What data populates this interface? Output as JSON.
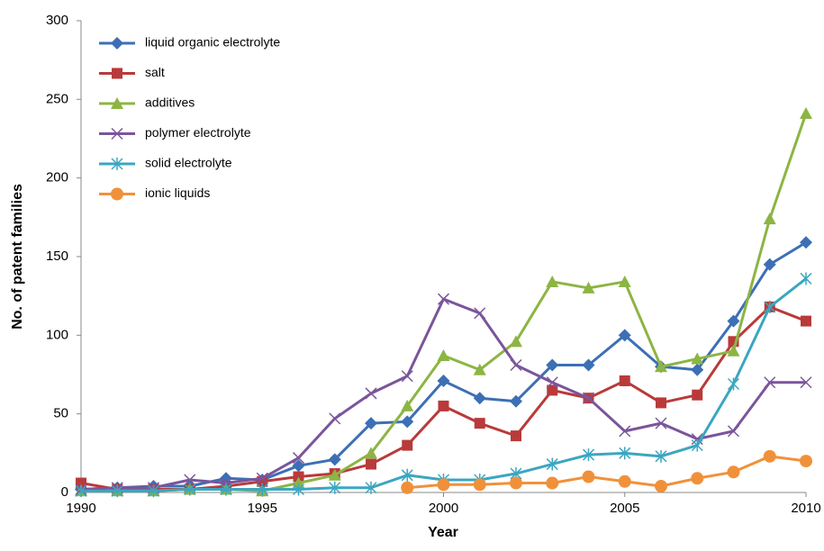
{
  "chart_data": {
    "type": "line",
    "x": [
      1990,
      1991,
      1992,
      1993,
      1994,
      1995,
      1996,
      1997,
      1998,
      1999,
      2000,
      2001,
      2002,
      2003,
      2004,
      2005,
      2006,
      2007,
      2008,
      2009,
      2010
    ],
    "xlabel": "Year",
    "ylabel": "No. of patent families",
    "xlim": [
      1990,
      2010
    ],
    "xticks": [
      1990,
      1995,
      2000,
      2005,
      2010
    ],
    "ylim": [
      0,
      300
    ],
    "yticks": [
      0,
      50,
      100,
      150,
      200,
      250,
      300
    ],
    "legend": "upper left",
    "series": [
      {
        "name": "liquid organic electrolyte",
        "color": "#3d6fb5",
        "values": [
          2,
          3,
          4,
          4,
          9,
          8,
          17,
          21,
          44,
          45,
          71,
          60,
          58,
          81,
          81,
          100,
          80,
          78,
          109,
          145,
          159
        ]
      },
      {
        "name": "salt",
        "color": "#b93a3a",
        "values": [
          6,
          2,
          2,
          2,
          4,
          7,
          10,
          12,
          18,
          30,
          55,
          44,
          36,
          65,
          60,
          71,
          57,
          62,
          96,
          118,
          109
        ]
      },
      {
        "name": "additives",
        "color": "#8cb543",
        "values": [
          1,
          1,
          1,
          2,
          2,
          1,
          6,
          11,
          25,
          55,
          87,
          78,
          96,
          134,
          130,
          134,
          80,
          85,
          90,
          174,
          241
        ]
      },
      {
        "name": "polymer electrolyte",
        "color": "#7a559b",
        "values": [
          2,
          3,
          3,
          8,
          6,
          9,
          22,
          47,
          63,
          74,
          123,
          114,
          81,
          70,
          60,
          39,
          44,
          34,
          39,
          70,
          70
        ]
      },
      {
        "name": "solid electrolyte",
        "color": "#3ba6c0",
        "values": [
          1,
          1,
          1,
          2,
          2,
          2,
          2,
          3,
          3,
          11,
          8,
          8,
          12,
          18,
          24,
          25,
          23,
          30,
          69,
          118,
          136
        ]
      },
      {
        "name": "ionic liquids",
        "color": "#f0913a",
        "values": [
          null,
          null,
          null,
          null,
          null,
          null,
          null,
          null,
          null,
          3,
          5,
          5,
          6,
          6,
          10,
          7,
          4,
          9,
          13,
          23,
          20
        ]
      }
    ]
  }
}
